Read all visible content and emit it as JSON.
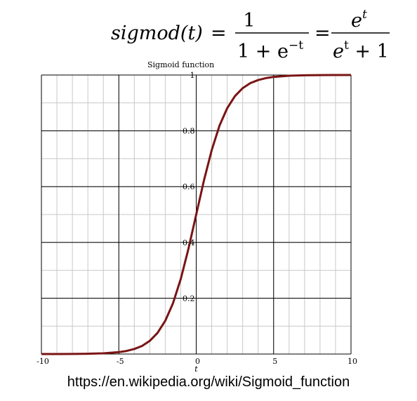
{
  "formula": {
    "lhs": "sigmod(t)",
    "eq1": "=",
    "frac1_num": "1",
    "frac1_den_prefix": "1 + e",
    "frac1_den_exp": "−t",
    "eq2": "=",
    "frac2_num_base": "e",
    "frac2_num_exp": "t",
    "frac2_den_base": "e",
    "frac2_den_exp": "t",
    "frac2_den_suffix": " + 1"
  },
  "source_url": "https://en.wikipedia.org/wiki/Sigmoid_function",
  "chart_data": {
    "type": "line",
    "title": "Sigmoid function",
    "xlabel": "t",
    "ylabel": "",
    "xlim": [
      -10,
      10
    ],
    "ylim": [
      0,
      1
    ],
    "x_ticks": [
      -10,
      -5,
      0,
      5,
      10
    ],
    "x_tick_labels": [
      "-10",
      "-5",
      "0",
      "5",
      "10"
    ],
    "y_ticks": [
      0.2,
      0.4,
      0.6,
      0.8,
      1
    ],
    "y_tick_labels": [
      "0.2",
      "0.4",
      "0.6",
      "0.8",
      "1"
    ],
    "grid": true,
    "series": [
      {
        "color": "#7a1414",
        "x": [
          -10,
          -9,
          -8,
          -7,
          -6,
          -5,
          -4.5,
          -4,
          -3.5,
          -3,
          -2.5,
          -2,
          -1.5,
          -1,
          -0.5,
          0,
          0.5,
          1,
          1.5,
          2,
          2.5,
          3,
          3.5,
          4,
          4.5,
          5,
          6,
          7,
          8,
          9,
          10
        ],
        "y": [
          5e-05,
          0.0001,
          0.0003,
          0.0009,
          0.0025,
          0.0067,
          0.011,
          0.018,
          0.029,
          0.047,
          0.076,
          0.119,
          0.182,
          0.269,
          0.378,
          0.5,
          0.622,
          0.731,
          0.818,
          0.881,
          0.924,
          0.953,
          0.971,
          0.982,
          0.989,
          0.9933,
          0.9975,
          0.9991,
          0.9997,
          0.9999,
          0.99995
        ]
      }
    ]
  }
}
